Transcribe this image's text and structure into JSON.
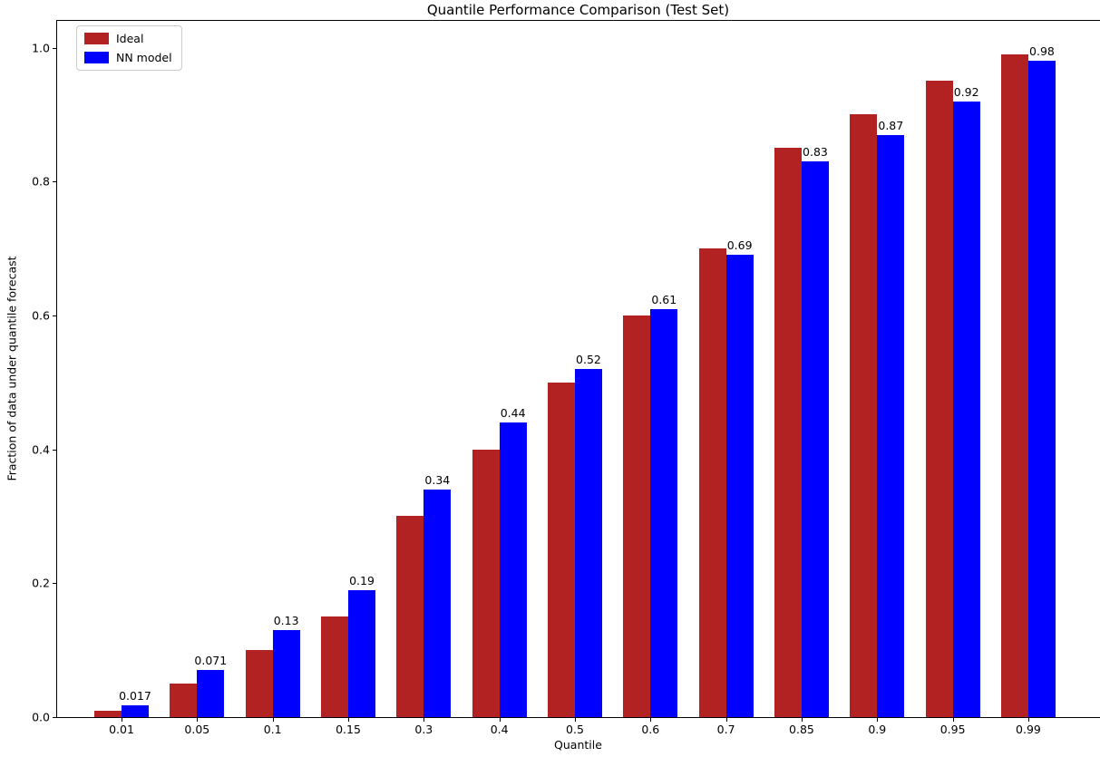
{
  "chart_data": {
    "type": "bar",
    "title": "Quantile Performance Comparison (Test Set)",
    "xlabel": "Quantile",
    "ylabel": "Fraction of data under quantile forecast",
    "categories": [
      "0.01",
      "0.05",
      "0.1",
      "0.15",
      "0.3",
      "0.4",
      "0.5",
      "0.6",
      "0.7",
      "0.85",
      "0.9",
      "0.95",
      "0.99"
    ],
    "series": [
      {
        "name": "Ideal",
        "color": "#B22222",
        "values": [
          0.01,
          0.05,
          0.1,
          0.15,
          0.3,
          0.4,
          0.5,
          0.6,
          0.7,
          0.85,
          0.9,
          0.95,
          0.99
        ]
      },
      {
        "name": "NN model",
        "color": "#0000FF",
        "values": [
          0.017,
          0.071,
          0.13,
          0.19,
          0.34,
          0.44,
          0.52,
          0.61,
          0.69,
          0.83,
          0.87,
          0.92,
          0.98
        ],
        "labels": [
          "0.017",
          "0.071",
          "0.13",
          "0.19",
          "0.34",
          "0.44",
          "0.52",
          "0.61",
          "0.69",
          "0.83",
          "0.87",
          "0.92",
          "0.98"
        ]
      }
    ],
    "yticks": [
      "0.0",
      "0.2",
      "0.4",
      "0.6",
      "0.8",
      "1.0"
    ],
    "ylim": [
      0,
      1.04
    ],
    "grid": false,
    "legend_position": "upper left",
    "bar_label_series": "NN model"
  }
}
